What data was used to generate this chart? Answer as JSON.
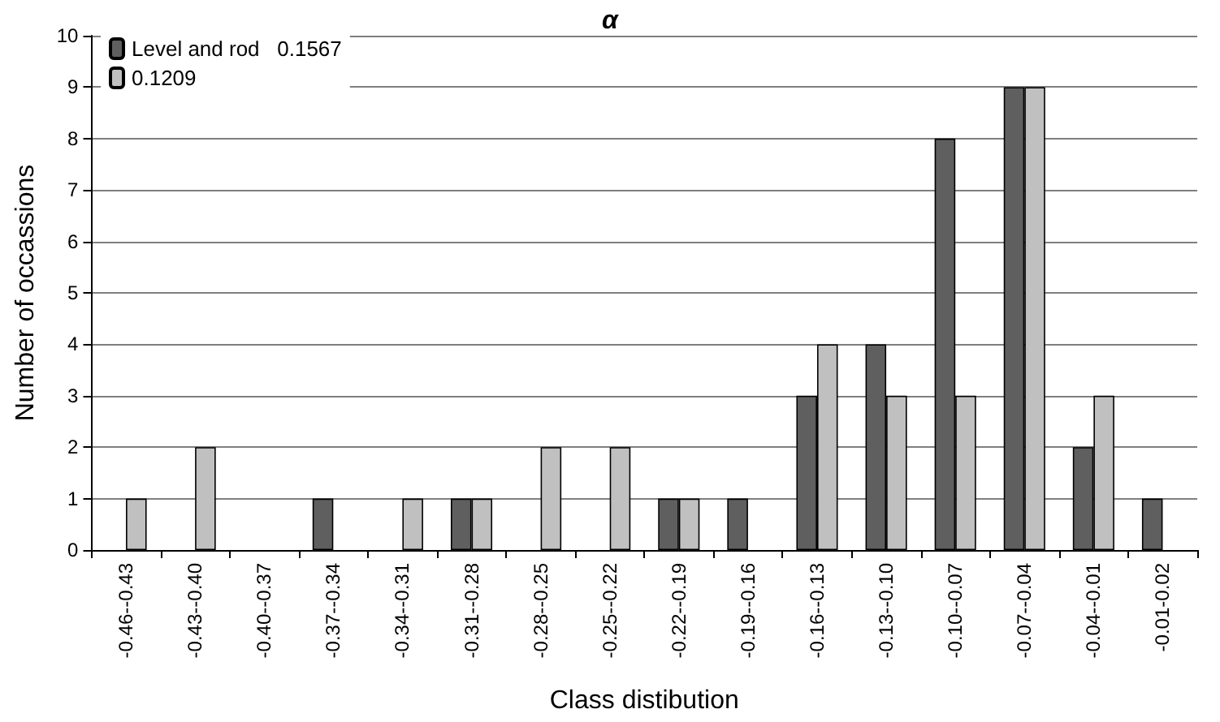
{
  "chart_data": {
    "type": "bar",
    "title": "α",
    "xlabel": "Class distibution",
    "ylabel": "Number of occassions",
    "categories": [
      "-0.46--0.43",
      "-0.43--0.40",
      "-0.40--0.37",
      "-0.37--0.34",
      "-0.34--0.31",
      "-0.31--0.28",
      "-0.28--0.25",
      "-0.25--0.22",
      "-0.22--0.19",
      "-0.19--0.16",
      "-0.16--0.13",
      "-0.13--0.10",
      "-0.10--0.07",
      "-0.07--0.04",
      "-0.04--0.01",
      "-0.01-0.02"
    ],
    "series": [
      {
        "name": "Level and rod   0.1567",
        "color": "#5f5f5f",
        "values": [
          0,
          0,
          0,
          1,
          0,
          1,
          0,
          0,
          1,
          1,
          3,
          4,
          8,
          9,
          2,
          1
        ]
      },
      {
        "name": "0.1209",
        "color": "#c0c0c0",
        "values": [
          1,
          2,
          0,
          0,
          1,
          1,
          2,
          2,
          1,
          0,
          4,
          3,
          3,
          9,
          3,
          0
        ]
      }
    ],
    "ylim": [
      0,
      10
    ],
    "yticks": [
      0,
      1,
      2,
      3,
      4,
      5,
      6,
      7,
      8,
      9,
      10
    ],
    "grid": "y",
    "legend": "top left"
  }
}
